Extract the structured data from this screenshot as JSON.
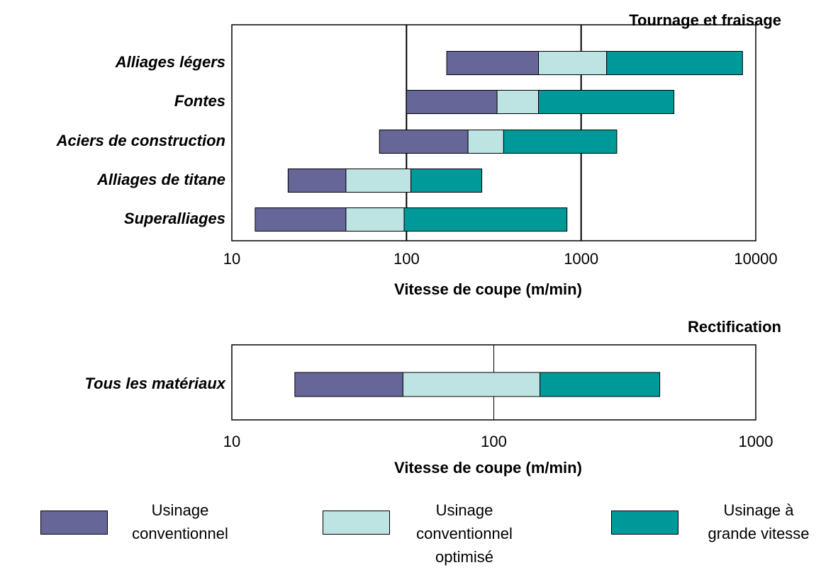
{
  "chart_data": [
    {
      "type": "range-bar",
      "title": "Tournage et fraisage",
      "xlabel": "Vitesse de coupe (m/min)",
      "xscale": "log",
      "xlim": [
        10,
        10000
      ],
      "xticks": [
        10,
        100,
        1000,
        10000
      ],
      "grid": true,
      "categories": [
        "Alliages légers",
        "Fontes",
        "Aciers de construction",
        "Alliages de titane",
        "Superalliages"
      ],
      "series": [
        {
          "name": "Usinage conventionnel",
          "color": "#666699",
          "values": [
            [
              170,
              570
            ],
            [
              100,
              330
            ],
            [
              70,
              225
            ],
            [
              21,
              45
            ],
            [
              13.6,
              45
            ]
          ]
        },
        {
          "name": "Usinage conventionnel optimisé",
          "color": "#bde3e3",
          "values": [
            [
              570,
              1400
            ],
            [
              330,
              570
            ],
            [
              225,
              360
            ],
            [
              45,
              106
            ],
            [
              45,
              97
            ]
          ]
        },
        {
          "name": "Usinage à grande vitesse",
          "color": "#009999",
          "values": [
            [
              1400,
              8400
            ],
            [
              570,
              3400
            ],
            [
              360,
              1600
            ],
            [
              106,
              270
            ],
            [
              97,
              830
            ]
          ]
        }
      ]
    },
    {
      "type": "range-bar",
      "title": "Rectification",
      "xlabel": "Vitesse de coupe (m/min)",
      "xscale": "log",
      "xlim": [
        10,
        1000
      ],
      "xticks": [
        10,
        100,
        1000
      ],
      "grid": true,
      "categories": [
        "Tous les matériaux"
      ],
      "series": [
        {
          "color": "#666699",
          "values": [
            [
              17.4,
              45
            ]
          ]
        },
        {
          "color": "#bde3e3",
          "values": [
            [
              45,
              150
            ]
          ]
        },
        {
          "color": "#009999",
          "values": [
            [
              150,
              430
            ]
          ]
        }
      ]
    }
  ]
}
